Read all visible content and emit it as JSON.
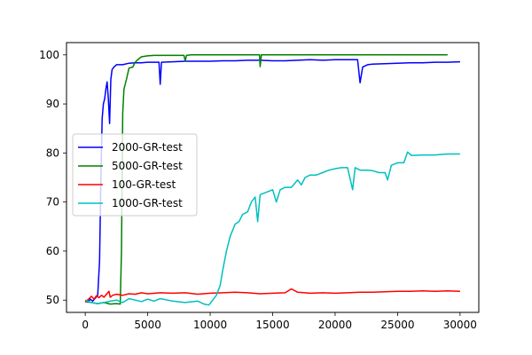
{
  "chart_data": {
    "type": "line",
    "title": "",
    "xlabel": "",
    "ylabel": "",
    "xlim": [
      -1500,
      31500
    ],
    "ylim": [
      47.5,
      102.5
    ],
    "xticks": [
      0,
      5000,
      10000,
      15000,
      20000,
      25000,
      30000
    ],
    "yticks": [
      50,
      60,
      70,
      80,
      90,
      100
    ],
    "grid": false,
    "legend_position": "center-left",
    "series": [
      {
        "name": "2000-GR-test",
        "color": "#0000ff",
        "points": [
          [
            0,
            50
          ],
          [
            200,
            49.6
          ],
          [
            400,
            50.2
          ],
          [
            600,
            49.8
          ],
          [
            800,
            50.4
          ],
          [
            1000,
            51
          ],
          [
            1150,
            58
          ],
          [
            1250,
            75
          ],
          [
            1350,
            87
          ],
          [
            1450,
            90
          ],
          [
            1550,
            91
          ],
          [
            1650,
            93
          ],
          [
            1750,
            94.5
          ],
          [
            1850,
            91
          ],
          [
            1950,
            86
          ],
          [
            2050,
            95
          ],
          [
            2150,
            97
          ],
          [
            2300,
            97.5
          ],
          [
            2500,
            98
          ],
          [
            3000,
            98
          ],
          [
            3500,
            98.3
          ],
          [
            4000,
            98.4
          ],
          [
            4500,
            98.4
          ],
          [
            5000,
            98.5
          ],
          [
            5500,
            98.5
          ],
          [
            5900,
            98.5
          ],
          [
            6000,
            94
          ],
          [
            6100,
            98.5
          ],
          [
            7000,
            98.6
          ],
          [
            8000,
            98.7
          ],
          [
            9000,
            98.7
          ],
          [
            10000,
            98.7
          ],
          [
            11000,
            98.8
          ],
          [
            12000,
            98.8
          ],
          [
            13000,
            98.9
          ],
          [
            14000,
            98.9
          ],
          [
            15000,
            98.8
          ],
          [
            16000,
            98.8
          ],
          [
            17000,
            98.9
          ],
          [
            18000,
            99
          ],
          [
            19000,
            98.9
          ],
          [
            20000,
            99
          ],
          [
            21000,
            99
          ],
          [
            21800,
            99
          ],
          [
            22000,
            94.3
          ],
          [
            22200,
            97.5
          ],
          [
            22600,
            98
          ],
          [
            23000,
            98.1
          ],
          [
            24000,
            98.2
          ],
          [
            25000,
            98.3
          ],
          [
            26000,
            98.4
          ],
          [
            27000,
            98.4
          ],
          [
            28000,
            98.5
          ],
          [
            29000,
            98.5
          ],
          [
            30000,
            98.6
          ]
        ]
      },
      {
        "name": "5000-GR-test",
        "color": "#008000",
        "points": [
          [
            0,
            49.7
          ],
          [
            500,
            49.5
          ],
          [
            1000,
            49.3
          ],
          [
            1500,
            49.5
          ],
          [
            2000,
            49.2
          ],
          [
            2500,
            49.3
          ],
          [
            2800,
            49.2
          ],
          [
            2900,
            60
          ],
          [
            3000,
            88
          ],
          [
            3100,
            93
          ],
          [
            3300,
            95
          ],
          [
            3500,
            97.3
          ],
          [
            3800,
            97.5
          ],
          [
            4000,
            98.5
          ],
          [
            4200,
            99
          ],
          [
            4500,
            99.6
          ],
          [
            5000,
            99.8
          ],
          [
            5500,
            99.9
          ],
          [
            6000,
            99.9
          ],
          [
            7000,
            99.9
          ],
          [
            7900,
            99.9
          ],
          [
            8000,
            98.7
          ],
          [
            8100,
            99.9
          ],
          [
            8500,
            100
          ],
          [
            9000,
            100
          ],
          [
            10000,
            100
          ],
          [
            11000,
            100
          ],
          [
            12000,
            100
          ],
          [
            13000,
            100
          ],
          [
            13950,
            100
          ],
          [
            14000,
            97.6
          ],
          [
            14100,
            100
          ],
          [
            15000,
            100
          ],
          [
            16000,
            100
          ],
          [
            18000,
            100
          ],
          [
            20000,
            100
          ],
          [
            22000,
            100
          ],
          [
            24000,
            100
          ],
          [
            26000,
            100
          ],
          [
            28000,
            100
          ],
          [
            29000,
            100
          ]
        ]
      },
      {
        "name": "100-GR-test",
        "color": "#ff0000",
        "points": [
          [
            0,
            49.6
          ],
          [
            300,
            50.3
          ],
          [
            500,
            50.8
          ],
          [
            700,
            50.2
          ],
          [
            900,
            50.9
          ],
          [
            1100,
            50.5
          ],
          [
            1300,
            51
          ],
          [
            1500,
            50.6
          ],
          [
            1700,
            51.2
          ],
          [
            1900,
            51.8
          ],
          [
            2000,
            50.6
          ],
          [
            2200,
            51
          ],
          [
            2500,
            51.2
          ],
          [
            3000,
            51
          ],
          [
            3500,
            51.3
          ],
          [
            4000,
            51.2
          ],
          [
            4500,
            51.5
          ],
          [
            5000,
            51.3
          ],
          [
            6000,
            51.5
          ],
          [
            7000,
            51.4
          ],
          [
            8000,
            51.5
          ],
          [
            9000,
            51.2
          ],
          [
            10000,
            51.4
          ],
          [
            11000,
            51.5
          ],
          [
            12000,
            51.6
          ],
          [
            13000,
            51.5
          ],
          [
            14000,
            51.3
          ],
          [
            15000,
            51.4
          ],
          [
            16000,
            51.5
          ],
          [
            16500,
            52.3
          ],
          [
            17000,
            51.6
          ],
          [
            18000,
            51.4
          ],
          [
            19000,
            51.5
          ],
          [
            20000,
            51.4
          ],
          [
            21000,
            51.5
          ],
          [
            22000,
            51.6
          ],
          [
            23000,
            51.6
          ],
          [
            24000,
            51.7
          ],
          [
            25000,
            51.8
          ],
          [
            26000,
            51.8
          ],
          [
            27000,
            51.9
          ],
          [
            28000,
            51.8
          ],
          [
            29000,
            51.9
          ],
          [
            30000,
            51.8
          ]
        ]
      },
      {
        "name": "1000-GR-test",
        "color": "#00bfbf",
        "points": [
          [
            0,
            50
          ],
          [
            500,
            49.5
          ],
          [
            1000,
            49.3
          ],
          [
            1500,
            49.5
          ],
          [
            2000,
            49.8
          ],
          [
            2500,
            50
          ],
          [
            3000,
            49.5
          ],
          [
            3500,
            50.3
          ],
          [
            4000,
            50
          ],
          [
            4500,
            49.7
          ],
          [
            5000,
            50.2
          ],
          [
            5500,
            49.8
          ],
          [
            6000,
            50.3
          ],
          [
            7000,
            49.8
          ],
          [
            8000,
            49.5
          ],
          [
            9000,
            49.8
          ],
          [
            9500,
            49.2
          ],
          [
            9900,
            49
          ],
          [
            10200,
            50
          ],
          [
            10500,
            51
          ],
          [
            10800,
            53
          ],
          [
            11000,
            56
          ],
          [
            11300,
            60
          ],
          [
            11600,
            63
          ],
          [
            12000,
            65.5
          ],
          [
            12300,
            66
          ],
          [
            12600,
            67.5
          ],
          [
            13000,
            68
          ],
          [
            13300,
            70
          ],
          [
            13600,
            71
          ],
          [
            13800,
            66
          ],
          [
            14000,
            71.5
          ],
          [
            14500,
            72
          ],
          [
            15000,
            72.5
          ],
          [
            15300,
            70
          ],
          [
            15600,
            72.5
          ],
          [
            16000,
            73
          ],
          [
            16500,
            73
          ],
          [
            17000,
            74.5
          ],
          [
            17300,
            73.5
          ],
          [
            17600,
            75
          ],
          [
            18000,
            75.5
          ],
          [
            18500,
            75.5
          ],
          [
            19000,
            76
          ],
          [
            19500,
            76.5
          ],
          [
            20000,
            76.8
          ],
          [
            20500,
            77
          ],
          [
            21000,
            77
          ],
          [
            21400,
            72.5
          ],
          [
            21600,
            77
          ],
          [
            22000,
            76.5
          ],
          [
            22500,
            76.5
          ],
          [
            23000,
            76.4
          ],
          [
            23500,
            76
          ],
          [
            24000,
            76
          ],
          [
            24200,
            74.5
          ],
          [
            24500,
            77.5
          ],
          [
            25000,
            78
          ],
          [
            25500,
            78
          ],
          [
            25800,
            80.2
          ],
          [
            26100,
            79.5
          ],
          [
            27000,
            79.6
          ],
          [
            28000,
            79.6
          ],
          [
            29000,
            79.8
          ],
          [
            30000,
            79.8
          ]
        ]
      }
    ]
  }
}
